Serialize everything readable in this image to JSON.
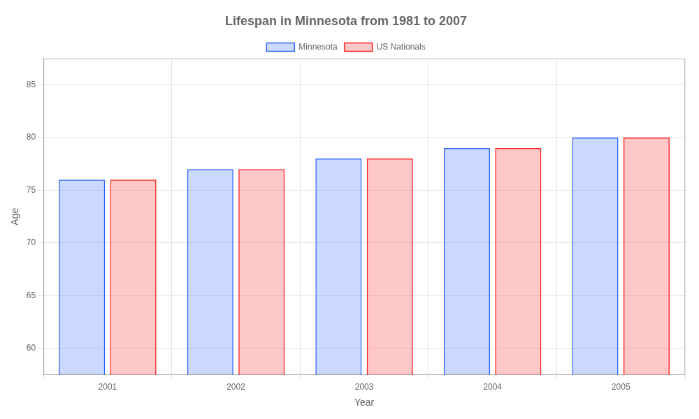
{
  "chart_data": {
    "type": "bar",
    "title": "Lifespan in Minnesota from 1981 to 2007",
    "x_label": "Year",
    "y_label": "Age",
    "categories": [
      "2001",
      "2002",
      "2003",
      "2004",
      "2005"
    ],
    "series": [
      {
        "name": "Minnesota",
        "color": "#3366ff",
        "values": [
          76.0,
          77.0,
          78.0,
          79.0,
          80.0
        ]
      },
      {
        "name": "US Nationals",
        "color": "#ff2222",
        "values": [
          76.0,
          77.0,
          78.0,
          79.0,
          80.0
        ]
      }
    ],
    "ylim": [
      57.5,
      87.5
    ],
    "yticks": [
      60,
      65,
      70,
      75,
      80,
      85
    ],
    "grid": true,
    "legend": "top"
  }
}
